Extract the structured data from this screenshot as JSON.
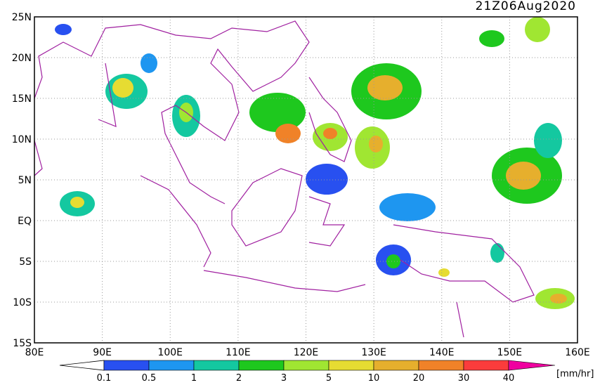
{
  "title": "21Z06Aug2020",
  "map": {
    "lat_labels": [
      "25N",
      "20N",
      "15N",
      "10N",
      "5N",
      "EQ",
      "5S",
      "10S",
      "15S"
    ],
    "lon_labels": [
      "80E",
      "90E",
      "100E",
      "110E",
      "120E",
      "130E",
      "140E",
      "150E",
      "160E"
    ]
  },
  "colorbar": {
    "labels": [
      "0.1",
      "0.5",
      "1",
      "2",
      "3",
      "5",
      "10",
      "20",
      "30",
      "40"
    ],
    "colors": [
      "#2850f0",
      "#1e96f0",
      "#14c8a0",
      "#1ec81e",
      "#a0e632",
      "#e6dc32",
      "#e6af2d",
      "#f08228",
      "#fa3c3c",
      "#f000a0"
    ],
    "unit": "[mm/hr]"
  }
}
